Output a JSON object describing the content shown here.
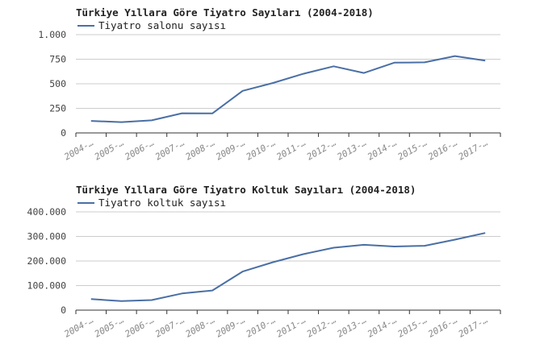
{
  "colors": {
    "series": "#4a6fa5",
    "grid": "#cccccc",
    "axis": "#333333"
  },
  "chart_data": [
    {
      "type": "line",
      "title": "Türkiye Yıllara Göre Tiyatro Sayıları (2004-2018)",
      "legend_position": "top-left",
      "grid": true,
      "categories": [
        "2004-…",
        "2005-…",
        "2006-…",
        "2007-…",
        "2008-…",
        "2009-…",
        "2010-…",
        "2011-…",
        "2012-…",
        "2013-…",
        "2014-…",
        "2015-…",
        "2016-…",
        "2017-…"
      ],
      "ylim": [
        0,
        1000
      ],
      "yticks": [
        0,
        250,
        500,
        750,
        1000
      ],
      "ytick_labels": [
        "0",
        "250",
        "500",
        "750",
        "1.000"
      ],
      "series": [
        {
          "name": "Tiyatro salonu sayısı",
          "values": [
            122,
            110,
            128,
            200,
            198,
            428,
            508,
            602,
            678,
            610,
            715,
            718,
            782,
            735
          ]
        }
      ]
    },
    {
      "type": "line",
      "title": "Türkiye Yıllara Göre Tiyatro Koltuk Sayıları (2004-2018)",
      "legend_position": "top-left",
      "grid": true,
      "categories": [
        "2004-…",
        "2005-…",
        "2006-…",
        "2007-…",
        "2008-…",
        "2009-…",
        "2010-…",
        "2011-…",
        "2012-…",
        "2013-…",
        "2014-…",
        "2015-…",
        "2016-…",
        "2017-…"
      ],
      "ylim": [
        0,
        400000
      ],
      "yticks": [
        0,
        100000,
        200000,
        300000,
        400000
      ],
      "ytick_labels": [
        "0",
        "100.000",
        "200.000",
        "300.000",
        "400.000"
      ],
      "series": [
        {
          "name": "Tiyatro koltuk sayısı",
          "values": [
            45000,
            37000,
            41000,
            68000,
            80000,
            157000,
            195000,
            228000,
            254000,
            266000,
            259000,
            262000,
            287000,
            314000
          ]
        }
      ]
    }
  ]
}
